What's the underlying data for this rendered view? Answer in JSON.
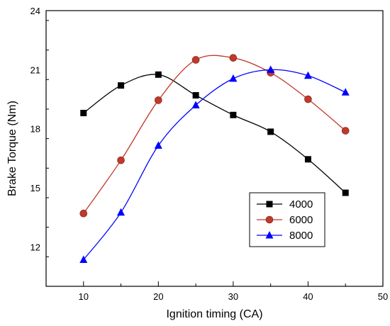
{
  "chart_data": {
    "type": "line",
    "title": "",
    "xlabel": "Ignition timing (CA)",
    "ylabel": "Brake Torque (Nm)",
    "xlim": [
      5,
      50
    ],
    "ylim": [
      10,
      24
    ],
    "x_ticks": [
      10,
      20,
      30,
      40,
      50
    ],
    "x_tick_labels": [
      "10",
      "20",
      "30",
      "40",
      "50"
    ],
    "y_ticks": [
      12,
      15,
      18,
      21,
      24
    ],
    "y_tick_labels": [
      "12",
      "15",
      "18",
      "21",
      "24"
    ],
    "grid": false,
    "legend_position": "bottom-right",
    "x": [
      10,
      15,
      20,
      25,
      30,
      35,
      40,
      45
    ],
    "series": [
      {
        "name": "4000",
        "color": "#000000",
        "marker": "square",
        "values": [
          18.8,
          20.2,
          20.75,
          19.7,
          18.7,
          17.85,
          16.45,
          14.75
        ]
      },
      {
        "name": "6000",
        "color": "#c0392b",
        "marker": "circle",
        "values": [
          13.7,
          16.4,
          19.45,
          21.5,
          21.6,
          20.85,
          19.5,
          17.9
        ]
      },
      {
        "name": "8000",
        "color": "#0000ff",
        "marker": "triangle",
        "values": [
          11.35,
          13.75,
          17.15,
          19.2,
          20.55,
          21.0,
          20.7,
          19.85
        ]
      }
    ]
  }
}
